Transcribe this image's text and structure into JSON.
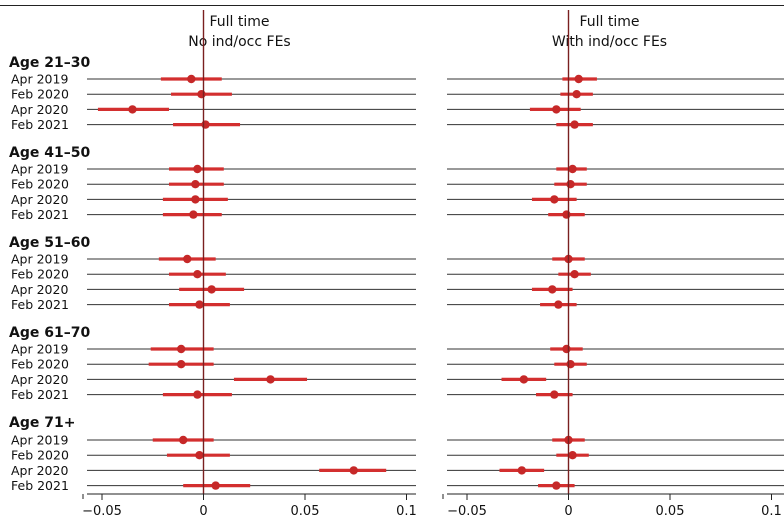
{
  "chart_data": {
    "type": "coefficient-dot-plot",
    "panels": [
      {
        "title_lines": [
          "Full time",
          "No ind/occ FEs"
        ],
        "xlim": [
          -0.057,
          0.105
        ],
        "xticks": [
          -0.05,
          0,
          0.05,
          0.1
        ],
        "tick_labels": [
          "−0.05",
          "0",
          "0.05",
          "0.1"
        ],
        "groups": [
          {
            "label": "Age 21–30",
            "rows": [
              {
                "label": "Apr 2019",
                "est": -0.006,
                "lo": -0.021,
                "hi": 0.009
              },
              {
                "label": "Feb 2020",
                "est": -0.001,
                "lo": -0.016,
                "hi": 0.014
              },
              {
                "label": "Apr 2020",
                "est": -0.035,
                "lo": -0.052,
                "hi": -0.017
              },
              {
                "label": "Feb 2021",
                "est": 0.001,
                "lo": -0.015,
                "hi": 0.018
              }
            ]
          },
          {
            "label": "Age 41–50",
            "rows": [
              {
                "label": "Apr 2019",
                "est": -0.003,
                "lo": -0.017,
                "hi": 0.01
              },
              {
                "label": "Feb 2020",
                "est": -0.004,
                "lo": -0.017,
                "hi": 0.01
              },
              {
                "label": "Apr 2020",
                "est": -0.004,
                "lo": -0.02,
                "hi": 0.012
              },
              {
                "label": "Feb 2021",
                "est": -0.005,
                "lo": -0.02,
                "hi": 0.009
              }
            ]
          },
          {
            "label": "Age 51–60",
            "rows": [
              {
                "label": "Apr 2019",
                "est": -0.008,
                "lo": -0.022,
                "hi": 0.006
              },
              {
                "label": "Feb 2020",
                "est": -0.003,
                "lo": -0.017,
                "hi": 0.011
              },
              {
                "label": "Apr 2020",
                "est": 0.004,
                "lo": -0.012,
                "hi": 0.02
              },
              {
                "label": "Feb 2021",
                "est": -0.002,
                "lo": -0.017,
                "hi": 0.013
              }
            ]
          },
          {
            "label": "Age 61–70",
            "rows": [
              {
                "label": "Apr 2019",
                "est": -0.011,
                "lo": -0.026,
                "hi": 0.005
              },
              {
                "label": "Feb 2020",
                "est": -0.011,
                "lo": -0.027,
                "hi": 0.005
              },
              {
                "label": "Apr 2020",
                "est": 0.033,
                "lo": 0.015,
                "hi": 0.051
              },
              {
                "label": "Feb 2021",
                "est": -0.003,
                "lo": -0.02,
                "hi": 0.014
              }
            ]
          },
          {
            "label": "Age 71+",
            "rows": [
              {
                "label": "Apr 2019",
                "est": -0.01,
                "lo": -0.025,
                "hi": 0.005
              },
              {
                "label": "Feb 2020",
                "est": -0.002,
                "lo": -0.018,
                "hi": 0.013
              },
              {
                "label": "Apr 2020",
                "est": 0.074,
                "lo": 0.057,
                "hi": 0.09
              },
              {
                "label": "Feb 2021",
                "est": 0.006,
                "lo": -0.01,
                "hi": 0.023
              }
            ]
          }
        ]
      },
      {
        "title_lines": [
          "Full time",
          "With ind/occ FEs"
        ],
        "xlim": [
          -0.057,
          0.105
        ],
        "xticks": [
          -0.05,
          0,
          0.05,
          0.1
        ],
        "tick_labels": [
          "−0.05",
          "0",
          "0.05",
          "0.1"
        ],
        "groups": [
          {
            "label": "Age 21–30",
            "rows": [
              {
                "label": "Apr 2019",
                "est": 0.005,
                "lo": -0.003,
                "hi": 0.014
              },
              {
                "label": "Feb 2020",
                "est": 0.004,
                "lo": -0.004,
                "hi": 0.012
              },
              {
                "label": "Apr 2020",
                "est": -0.006,
                "lo": -0.019,
                "hi": 0.006
              },
              {
                "label": "Feb 2021",
                "est": 0.003,
                "lo": -0.006,
                "hi": 0.012
              }
            ]
          },
          {
            "label": "Age 41–50",
            "rows": [
              {
                "label": "Apr 2019",
                "est": 0.002,
                "lo": -0.006,
                "hi": 0.009
              },
              {
                "label": "Feb 2020",
                "est": 0.001,
                "lo": -0.007,
                "hi": 0.009
              },
              {
                "label": "Apr 2020",
                "est": -0.007,
                "lo": -0.018,
                "hi": 0.004
              },
              {
                "label": "Feb 2021",
                "est": -0.001,
                "lo": -0.01,
                "hi": 0.008
              }
            ]
          },
          {
            "label": "Age 51–60",
            "rows": [
              {
                "label": "Apr 2019",
                "est": 0.0,
                "lo": -0.008,
                "hi": 0.008
              },
              {
                "label": "Feb 2020",
                "est": 0.003,
                "lo": -0.005,
                "hi": 0.011
              },
              {
                "label": "Apr 2020",
                "est": -0.008,
                "lo": -0.018,
                "hi": 0.002
              },
              {
                "label": "Feb 2021",
                "est": -0.005,
                "lo": -0.014,
                "hi": 0.004
              }
            ]
          },
          {
            "label": "Age 61–70",
            "rows": [
              {
                "label": "Apr 2019",
                "est": -0.001,
                "lo": -0.009,
                "hi": 0.007
              },
              {
                "label": "Feb 2020",
                "est": 0.001,
                "lo": -0.007,
                "hi": 0.009
              },
              {
                "label": "Apr 2020",
                "est": -0.022,
                "lo": -0.033,
                "hi": -0.011
              },
              {
                "label": "Feb 2021",
                "est": -0.007,
                "lo": -0.016,
                "hi": 0.002
              }
            ]
          },
          {
            "label": "Age 71+",
            "rows": [
              {
                "label": "Apr 2019",
                "est": 0.0,
                "lo": -0.008,
                "hi": 0.008
              },
              {
                "label": "Feb 2020",
                "est": 0.002,
                "lo": -0.006,
                "hi": 0.01
              },
              {
                "label": "Apr 2020",
                "est": -0.023,
                "lo": -0.034,
                "hi": -0.012
              },
              {
                "label": "Feb 2021",
                "est": -0.006,
                "lo": -0.015,
                "hi": 0.003
              }
            ]
          }
        ]
      }
    ],
    "colors": {
      "point": "#c62828",
      "ci": "#d32f2f",
      "zero_line": "#7a1f1f",
      "row_line": "#333333"
    },
    "grid": false,
    "legend": "none"
  }
}
